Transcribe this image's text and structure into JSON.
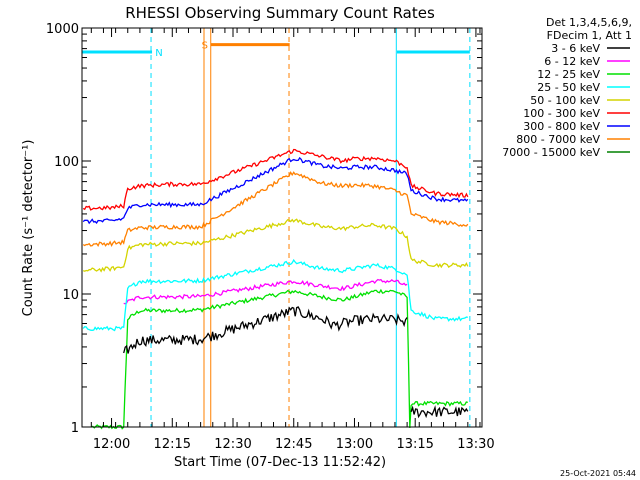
{
  "chart_data": {
    "type": "line",
    "title": "RHESSI Observing Summary Count Rates",
    "xlabel": "Start Time (07-Dec-13 11:52:42)",
    "ylabel": "Count Rate (s⁻¹ detector⁻¹)",
    "yscale": "log",
    "ylim": [
      1,
      1000
    ],
    "xlim": [
      "11:52:42",
      "13:31:30"
    ],
    "xticks": [
      "12:00",
      "12:15",
      "12:30",
      "12:45",
      "13:00",
      "13:15",
      "13:30"
    ],
    "yticks": [
      "1",
      "10",
      "100",
      "1000"
    ],
    "grid": false,
    "legend_position": "outside-right",
    "legend_header": [
      "Det 1,3,4,5,6,9,",
      "FDecim 1, Att 1"
    ],
    "footer_date": "25-Oct-2021 05:44",
    "flags": [
      {
        "label": "N",
        "color": "#00e0ff",
        "segments": [
          [
            "11:52:42",
            "12:10:00"
          ],
          [
            "13:10:30",
            "13:28:30"
          ]
        ],
        "value": 660
      },
      {
        "label": "S",
        "color": "#ff8000",
        "segments": [
          [
            "12:24:30",
            "12:44:00"
          ]
        ],
        "value": 750
      }
    ],
    "vertical_lines": [
      {
        "time": "12:09:45",
        "color": "#00e0ff",
        "style": "dashed"
      },
      {
        "time": "12:22:50",
        "color": "#ff8000",
        "style": "solid"
      },
      {
        "time": "12:24:30",
        "color": "#ff8000",
        "style": "solid"
      },
      {
        "time": "12:43:50",
        "color": "#ff8000",
        "style": "dashed"
      },
      {
        "time": "13:10:20",
        "color": "#00e0ff",
        "style": "solid"
      },
      {
        "time": "13:28:30",
        "color": "#00e0ff",
        "style": "dashed"
      }
    ],
    "data_gap": [
      "12:22:00",
      "12:45:00"
    ],
    "series": [
      {
        "name": "3 - 6 keV",
        "color": "#000000",
        "points": [
          [
            "11:56:00",
            null
          ],
          [
            "12:03:00",
            3.6
          ],
          [
            "12:07:00",
            4.5
          ],
          [
            "12:15:00",
            4.5
          ],
          [
            "12:22:00",
            4.6
          ],
          [
            "12:45:00",
            7.5
          ],
          [
            "12:52:00",
            6.5
          ],
          [
            "12:55:00",
            5.8
          ],
          [
            "13:00:00",
            6.3
          ],
          [
            "13:05:00",
            6.5
          ],
          [
            "13:10:00",
            6.4
          ],
          [
            "13:13:00",
            6.2
          ],
          [
            "13:13:40",
            null
          ],
          [
            "13:14:00",
            1.3
          ],
          [
            "13:21:00",
            1.3
          ],
          [
            "13:28:00",
            1.3
          ]
        ]
      },
      {
        "name": "6 - 12 keV",
        "color": "#ff00ff",
        "points": [
          [
            "12:03:00",
            8.5
          ],
          [
            "12:07:00",
            9.5
          ],
          [
            "12:15:00",
            9.5
          ],
          [
            "12:22:00",
            9.6
          ],
          [
            "12:45:00",
            12.5
          ],
          [
            "12:52:00",
            11.5
          ],
          [
            "12:57:00",
            11.0
          ],
          [
            "13:00:00",
            11.5
          ],
          [
            "13:05:00",
            12.5
          ],
          [
            "13:10:00",
            12.5
          ],
          [
            "13:13:00",
            11.5
          ],
          [
            "13:15:00",
            null
          ]
        ]
      },
      {
        "name": "12 - 25 keV",
        "color": "#00e000",
        "points": [
          [
            "11:55:00",
            1.0
          ],
          [
            "12:03:00",
            1.0
          ],
          [
            "12:04:00",
            6.5
          ],
          [
            "12:07:00",
            7.5
          ],
          [
            "12:15:00",
            7.5
          ],
          [
            "12:22:00",
            7.6
          ],
          [
            "12:45:00",
            10.5
          ],
          [
            "12:52:00",
            9.5
          ],
          [
            "12:57:00",
            9.0
          ],
          [
            "13:00:00",
            9.5
          ],
          [
            "13:05:00",
            10.5
          ],
          [
            "13:10:00",
            10.5
          ],
          [
            "13:13:00",
            9.5
          ],
          [
            "13:13:40",
            1.0
          ],
          [
            "13:14:00",
            1.5
          ],
          [
            "13:28:00",
            1.5
          ]
        ]
      },
      {
        "name": "25 - 50 keV",
        "color": "#00ffff",
        "points": [
          [
            "11:53:00",
            5.5
          ],
          [
            "12:00:00",
            5.5
          ],
          [
            "12:03:00",
            5.5
          ],
          [
            "12:04:00",
            11.0
          ],
          [
            "12:07:00",
            12.5
          ],
          [
            "12:15:00",
            12.5
          ],
          [
            "12:22:00",
            12.6
          ],
          [
            "12:45:00",
            17.5
          ],
          [
            "12:52:00",
            15.5
          ],
          [
            "12:57:00",
            15.0
          ],
          [
            "13:00:00",
            15.5
          ],
          [
            "13:05:00",
            16.5
          ],
          [
            "13:10:00",
            15.5
          ],
          [
            "13:13:00",
            14.0
          ],
          [
            "13:14:00",
            7.5
          ],
          [
            "13:20:00",
            6.5
          ],
          [
            "13:28:00",
            6.5
          ]
        ]
      },
      {
        "name": "50 - 100 keV",
        "color": "#d4d400",
        "points": [
          [
            "11:53:00",
            15.0
          ],
          [
            "12:00:00",
            15.5
          ],
          [
            "12:03:00",
            16.0
          ],
          [
            "12:04:00",
            22.0
          ],
          [
            "12:07:00",
            23.5
          ],
          [
            "12:15:00",
            24.0
          ],
          [
            "12:22:00",
            24.0
          ],
          [
            "12:45:00",
            36.0
          ],
          [
            "12:52:00",
            32.0
          ],
          [
            "12:57:00",
            31.0
          ],
          [
            "13:00:00",
            32.0
          ],
          [
            "13:05:00",
            33.0
          ],
          [
            "13:10:00",
            31.0
          ],
          [
            "13:13:00",
            27.0
          ],
          [
            "13:14:00",
            18.0
          ],
          [
            "13:20:00",
            16.5
          ],
          [
            "13:28:00",
            16.5
          ]
        ]
      },
      {
        "name": "100 - 300 keV",
        "color": "#ff0000",
        "points": [
          [
            "11:53:00",
            44.0
          ],
          [
            "12:00:00",
            44.5
          ],
          [
            "12:03:00",
            46.0
          ],
          [
            "12:04:00",
            62.0
          ],
          [
            "12:07:00",
            65.0
          ],
          [
            "12:15:00",
            67.0
          ],
          [
            "12:22:00",
            67.0
          ],
          [
            "12:45:00",
            120.0
          ],
          [
            "12:52:00",
            108.0
          ],
          [
            "12:57:00",
            100.0
          ],
          [
            "13:00:00",
            104.0
          ],
          [
            "13:05:00",
            105.0
          ],
          [
            "13:10:00",
            100.0
          ],
          [
            "13:13:00",
            90.0
          ],
          [
            "13:14:00",
            65.0
          ],
          [
            "13:20:00",
            57.0
          ],
          [
            "13:28:00",
            55.0
          ]
        ]
      },
      {
        "name": "300 - 800 keV",
        "color": "#0000ff",
        "points": [
          [
            "11:53:00",
            35.0
          ],
          [
            "12:00:00",
            35.5
          ],
          [
            "12:03:00",
            37.0
          ],
          [
            "12:04:00",
            44.0
          ],
          [
            "12:07:00",
            47.0
          ],
          [
            "12:15:00",
            47.0
          ],
          [
            "12:22:00",
            47.0
          ],
          [
            "12:45:00",
            105.0
          ],
          [
            "12:52:00",
            92.0
          ],
          [
            "12:57:00",
            88.0
          ],
          [
            "13:00:00",
            90.0
          ],
          [
            "13:05:00",
            90.0
          ],
          [
            "13:10:00",
            85.0
          ],
          [
            "13:13:00",
            80.0
          ],
          [
            "13:14:00",
            60.0
          ],
          [
            "13:20:00",
            52.0
          ],
          [
            "13:28:00",
            50.0
          ]
        ]
      },
      {
        "name": "800 - 7000 keV",
        "color": "#ff8000",
        "points": [
          [
            "11:53:00",
            23.5
          ],
          [
            "12:00:00",
            24.0
          ],
          [
            "12:03:00",
            24.5
          ],
          [
            "12:04:00",
            30.0
          ],
          [
            "12:07:00",
            31.5
          ],
          [
            "12:15:00",
            32.0
          ],
          [
            "12:22:00",
            32.0
          ],
          [
            "12:45:00",
            82.0
          ],
          [
            "12:52:00",
            68.0
          ],
          [
            "12:57:00",
            65.0
          ],
          [
            "13:00:00",
            66.0
          ],
          [
            "13:05:00",
            65.0
          ],
          [
            "13:10:00",
            60.0
          ],
          [
            "13:13:00",
            55.0
          ],
          [
            "13:14:00",
            40.0
          ],
          [
            "13:20:00",
            35.0
          ],
          [
            "13:28:00",
            33.0
          ]
        ]
      },
      {
        "name": "7000 - 15000 keV",
        "color": "#008000",
        "points": []
      }
    ]
  }
}
